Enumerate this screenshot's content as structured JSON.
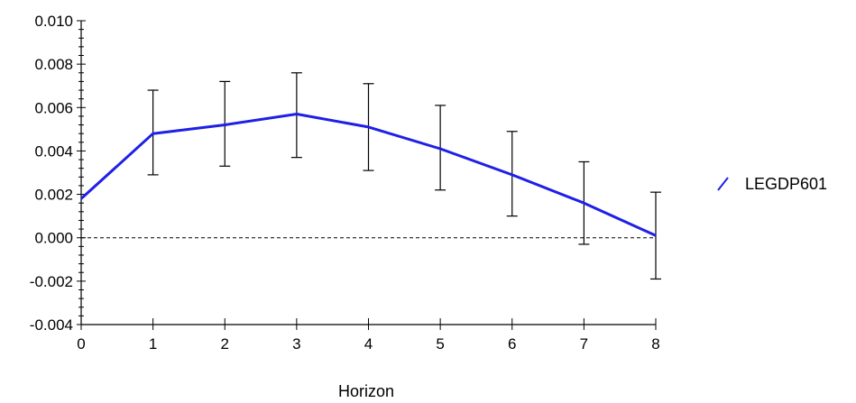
{
  "chart_data": {
    "type": "line",
    "title": "",
    "xlabel": "Horizon",
    "ylabel": "",
    "x": [
      0,
      1,
      2,
      3,
      4,
      5,
      6,
      7,
      8
    ],
    "xlim": [
      0,
      8
    ],
    "ylim": [
      -0.004,
      0.01
    ],
    "x_ticks": [
      "0",
      "1",
      "2",
      "3",
      "4",
      "5",
      "6",
      "7",
      "8"
    ],
    "y_ticks": [
      0.01,
      0.008,
      0.006,
      0.004,
      0.002,
      0.0,
      -0.002,
      -0.004
    ],
    "y_tick_labels": [
      "0.010",
      "0.008",
      "0.006",
      "0.004",
      "0.002",
      "0.000",
      "-0.002",
      "-0.004"
    ],
    "series": [
      {
        "name": "LEGDP601",
        "color": "#1f1fe6",
        "values": [
          0.0018,
          0.0048,
          0.0052,
          0.0057,
          0.0051,
          0.0041,
          0.0029,
          0.0016,
          0.0001
        ],
        "error_low": [
          null,
          0.0029,
          0.0033,
          0.0037,
          0.0031,
          0.0022,
          0.001,
          -0.0003,
          -0.0019
        ],
        "error_high": [
          null,
          0.0068,
          0.0072,
          0.0076,
          0.0071,
          0.0061,
          0.0049,
          0.0035,
          0.0021
        ]
      }
    ],
    "reference_line": {
      "y": 0.0,
      "style": "dashed"
    },
    "legend": {
      "placement": "right",
      "entries": [
        "LEGDP601"
      ]
    },
    "grid": false
  }
}
